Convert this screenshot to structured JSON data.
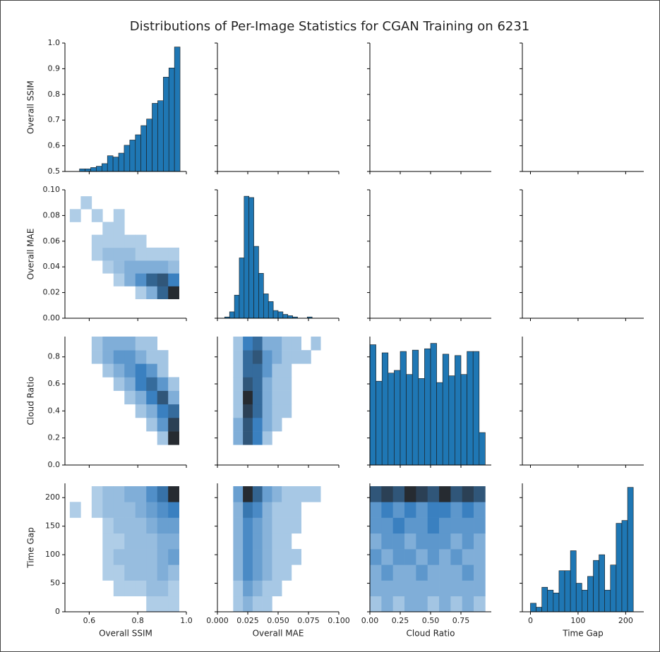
{
  "chart_data": {
    "type": "pairgrid",
    "title": "Distributions of Per-Image Statistics for CGAN Training on 6231",
    "color": "#1f77b4",
    "heatmap_colors": [
      "#c6dcef",
      "#3a80c0",
      "#262b31"
    ],
    "variables": [
      {
        "label": "Overall SSIM",
        "xlim": [
          0.5,
          1.0
        ],
        "ylim": [
          0.5,
          1.0
        ],
        "xticks": [
          0.6,
          0.8,
          {
            "value": 1,
            "label": "1.0"
          }
        ],
        "yticks": [
          0.5,
          0.6,
          0.7,
          0.8,
          0.9,
          {
            "value": 1,
            "label": "1.0"
          }
        ]
      },
      {
        "label": "Overall MAE",
        "xlim": [
          0,
          0.1
        ],
        "ylim": [
          0,
          0.1
        ],
        "xticks": [
          {
            "value": 0,
            "label": "0.000"
          },
          0.025,
          {
            "value": 0.05,
            "label": "0.050"
          },
          0.075,
          {
            "value": 0.1,
            "label": "0.100"
          }
        ],
        "yticks": [
          {
            "value": 0,
            "label": "0.00"
          },
          0.02,
          0.04,
          0.06,
          0.08,
          {
            "value": 0.1,
            "label": "0.10"
          }
        ]
      },
      {
        "label": "Cloud Ratio",
        "xlim": [
          0,
          1
        ],
        "ylim": [
          0,
          0.95
        ],
        "xticks": [
          {
            "value": 0,
            "label": "0.00"
          },
          0.25,
          {
            "value": 0.5,
            "label": "0.50"
          },
          0.75
        ],
        "yticks": [
          {
            "value": 0,
            "label": "0.0"
          },
          0.2,
          0.4,
          0.6,
          0.8
        ]
      },
      {
        "label": "Time Gap",
        "xlim": [
          -17,
          238
        ],
        "ylim": [
          0,
          225
        ],
        "xticks": [
          0,
          100,
          200
        ],
        "yticks": [
          0,
          50,
          100,
          150,
          200
        ]
      }
    ],
    "diagonal": [
      {
        "bins": [
          0.56,
          0.583,
          0.606,
          0.629,
          0.652,
          0.675,
          0.698,
          0.721,
          0.744,
          0.767,
          0.79,
          0.813,
          0.836,
          0.859,
          0.882,
          0.905,
          0.928,
          0.951,
          0.974
        ],
        "counts": [
          10,
          10,
          15,
          20,
          30,
          60,
          55,
          70,
          100,
          120,
          140,
          175,
          200,
          260,
          270,
          360,
          395,
          475
        ],
        "countlim": [
          0,
          490
        ]
      },
      {
        "bins": [
          0.006,
          0.01,
          0.014,
          0.018,
          0.022,
          0.026,
          0.03,
          0.034,
          0.038,
          0.042,
          0.046,
          0.05,
          0.054,
          0.058,
          0.062,
          0.066,
          0.07,
          0.074,
          0.078
        ],
        "counts": [
          1,
          5,
          18,
          47,
          95,
          94,
          56,
          35,
          19,
          13,
          6,
          5,
          3,
          2,
          1,
          0,
          0,
          1
        ],
        "countlim": [
          0,
          100
        ]
      },
      {
        "bins": [
          0,
          0.05,
          0.1,
          0.15,
          0.2,
          0.25,
          0.3,
          0.35,
          0.4,
          0.45,
          0.5,
          0.55,
          0.6,
          0.65,
          0.7,
          0.75,
          0.8,
          0.85,
          0.9,
          0.95
        ],
        "counts": [
          89,
          62,
          83,
          68,
          70,
          84,
          67,
          85,
          64,
          86,
          90,
          61,
          82,
          66,
          81,
          67,
          84,
          84,
          24
        ],
        "countlim": [
          0,
          95
        ]
      },
      {
        "bins": [
          0,
          12,
          24,
          36,
          48,
          60,
          72,
          84,
          96,
          108,
          120,
          132,
          144,
          156,
          168,
          180,
          192,
          204,
          216
        ],
        "counts": [
          15,
          8,
          43,
          38,
          33,
          72,
          72,
          107,
          50,
          38,
          62,
          90,
          100,
          38,
          82,
          155,
          160,
          218
        ],
        "countlim": [
          0,
          225
        ]
      }
    ],
    "heatmaps": [
      {
        "xbins": [
          0.52,
          0.565,
          0.61,
          0.655,
          0.7,
          0.745,
          0.79,
          0.835,
          0.88,
          0.925,
          0.97
        ],
        "ybins": [
          0.015,
          0.025,
          0.035,
          0.045,
          0.055,
          0.065,
          0.075,
          0.085,
          0.095
        ],
        "counts": [
          [
            0,
            0,
            0,
            0,
            0,
            0,
            1,
            3,
            8,
            12
          ],
          [
            0,
            0,
            0,
            0,
            1,
            3,
            5,
            8,
            9,
            6
          ],
          [
            0,
            0,
            0,
            1,
            2,
            3,
            3,
            3,
            3,
            2
          ],
          [
            0,
            0,
            1,
            2,
            2,
            2,
            1,
            1,
            1,
            1
          ],
          [
            0,
            0,
            1,
            1,
            1,
            1,
            1,
            0,
            0,
            0
          ],
          [
            0,
            0,
            0,
            1,
            1,
            0,
            0,
            0,
            0,
            0
          ],
          [
            1,
            0,
            1,
            0,
            1,
            0,
            0,
            0,
            0,
            0
          ],
          [
            0,
            1,
            0,
            0,
            0,
            0,
            0,
            0,
            0,
            0
          ]
        ]
      },
      {
        "xbins": [
          0.52,
          0.565,
          0.61,
          0.655,
          0.7,
          0.745,
          0.79,
          0.835,
          0.88,
          0.925,
          0.97
        ],
        "ybins": [
          0.15,
          0.25,
          0.35,
          0.45,
          0.55,
          0.65,
          0.75,
          0.85,
          0.95
        ],
        "counts": [
          [
            0,
            0,
            0,
            0,
            0,
            0,
            0,
            0,
            1,
            8
          ],
          [
            0,
            0,
            0,
            0,
            0,
            0,
            0,
            1,
            3,
            7
          ],
          [
            0,
            0,
            0,
            0,
            0,
            0,
            1,
            2,
            4,
            5
          ],
          [
            0,
            0,
            0,
            0,
            0,
            1,
            2,
            4,
            6,
            2
          ],
          [
            0,
            0,
            0,
            0,
            1,
            2,
            4,
            5,
            3,
            1
          ],
          [
            0,
            0,
            0,
            1,
            2,
            3,
            4,
            3,
            1,
            0
          ],
          [
            0,
            0,
            1,
            2,
            3,
            3,
            2,
            1,
            1,
            0
          ],
          [
            0,
            0,
            1,
            2,
            2,
            2,
            1,
            1,
            0,
            0
          ]
        ]
      },
      {
        "xbins": [
          0.005,
          0.013,
          0.021,
          0.029,
          0.037,
          0.045,
          0.053,
          0.061,
          0.069,
          0.077,
          0.085
        ],
        "ybins": [
          0.15,
          0.25,
          0.35,
          0.45,
          0.55,
          0.65,
          0.75,
          0.85,
          0.95
        ],
        "counts": [
          [
            0,
            2,
            6,
            4,
            1,
            0,
            0,
            0,
            0,
            0
          ],
          [
            0,
            2,
            6,
            4,
            2,
            1,
            0,
            0,
            0,
            0
          ],
          [
            0,
            1,
            7,
            5,
            2,
            1,
            1,
            0,
            0,
            0
          ],
          [
            0,
            1,
            8,
            5,
            2,
            1,
            1,
            0,
            0,
            0
          ],
          [
            0,
            1,
            6,
            5,
            2,
            1,
            1,
            0,
            0,
            0
          ],
          [
            0,
            1,
            5,
            5,
            3,
            1,
            1,
            0,
            0,
            0
          ],
          [
            0,
            1,
            5,
            6,
            3,
            2,
            1,
            1,
            1,
            0
          ],
          [
            0,
            1,
            4,
            5,
            2,
            2,
            1,
            1,
            0,
            1
          ]
        ]
      },
      {
        "xbins": [
          0.52,
          0.565,
          0.61,
          0.655,
          0.7,
          0.745,
          0.79,
          0.835,
          0.88,
          0.925,
          0.97
        ],
        "ybins": [
          0,
          27.5,
          55,
          82.5,
          110,
          137.5,
          165,
          192.5,
          220
        ],
        "counts": [
          [
            0,
            0,
            0,
            0,
            0,
            0,
            0,
            1,
            1,
            1
          ],
          [
            0,
            0,
            0,
            0,
            1,
            1,
            1,
            2,
            2,
            1
          ],
          [
            0,
            0,
            0,
            1,
            1,
            2,
            2,
            2,
            3,
            2
          ],
          [
            0,
            0,
            0,
            1,
            2,
            2,
            2,
            2,
            3,
            4
          ],
          [
            0,
            0,
            0,
            1,
            1,
            2,
            2,
            2,
            3,
            3
          ],
          [
            0,
            0,
            0,
            1,
            2,
            2,
            2,
            3,
            4,
            4
          ],
          [
            1,
            0,
            1,
            2,
            2,
            2,
            3,
            4,
            5,
            6
          ],
          [
            0,
            0,
            1,
            2,
            2,
            3,
            3,
            5,
            7,
            12
          ]
        ]
      },
      {
        "xbins": [
          0.005,
          0.013,
          0.021,
          0.029,
          0.037,
          0.045,
          0.053,
          0.061,
          0.069,
          0.077,
          0.085
        ],
        "ybins": [
          0,
          27.5,
          55,
          82.5,
          110,
          137.5,
          165,
          192.5,
          220
        ],
        "counts": [
          [
            0,
            1,
            2,
            1,
            1,
            0,
            0,
            0,
            0,
            0
          ],
          [
            0,
            1,
            3,
            2,
            1,
            1,
            0,
            0,
            0,
            0
          ],
          [
            0,
            2,
            4,
            3,
            2,
            1,
            1,
            0,
            0,
            0
          ],
          [
            0,
            2,
            4,
            3,
            2,
            1,
            1,
            1,
            0,
            0
          ],
          [
            0,
            2,
            4,
            3,
            2,
            1,
            1,
            0,
            0,
            0
          ],
          [
            0,
            2,
            4,
            3,
            2,
            1,
            1,
            1,
            0,
            0
          ],
          [
            0,
            2,
            5,
            4,
            2,
            1,
            1,
            1,
            0,
            0
          ],
          [
            0,
            3,
            9,
            6,
            3,
            2,
            1,
            1,
            1,
            1
          ]
        ]
      },
      {
        "xbins": [
          0,
          0.095,
          0.19,
          0.285,
          0.38,
          0.475,
          0.57,
          0.665,
          0.76,
          0.855,
          0.95
        ],
        "ybins": [
          0,
          27.5,
          55,
          82.5,
          110,
          137.5,
          165,
          192.5,
          220
        ],
        "counts": [
          [
            1,
            2,
            1,
            2,
            2,
            1,
            2,
            1,
            2,
            1
          ],
          [
            2,
            2,
            2,
            2,
            2,
            2,
            2,
            2,
            2,
            2
          ],
          [
            2,
            3,
            2,
            2,
            3,
            2,
            2,
            2,
            3,
            2
          ],
          [
            3,
            2,
            3,
            3,
            2,
            3,
            2,
            3,
            2,
            2
          ],
          [
            2,
            3,
            3,
            2,
            3,
            3,
            3,
            2,
            3,
            2
          ],
          [
            3,
            3,
            4,
            3,
            3,
            4,
            3,
            3,
            3,
            3
          ],
          [
            3,
            4,
            3,
            4,
            3,
            4,
            4,
            3,
            4,
            3
          ],
          [
            6,
            7,
            6,
            8,
            7,
            6,
            8,
            6,
            7,
            6
          ]
        ]
      }
    ]
  }
}
